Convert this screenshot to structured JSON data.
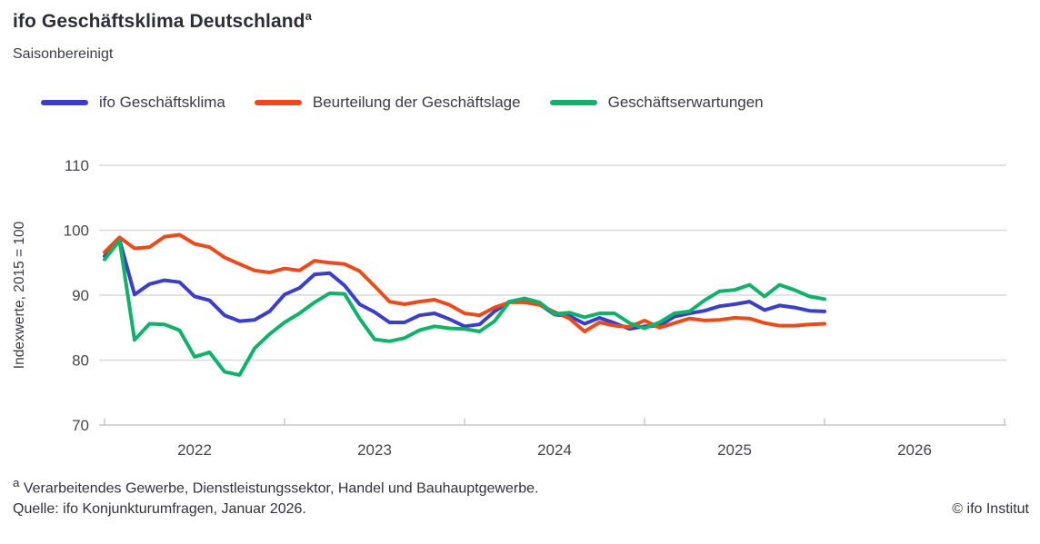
{
  "header": {
    "title": "ifo Geschäftsklima Deutschland",
    "title_superscript": "a",
    "subtitle": "Saisonbereinigt"
  },
  "legend": {
    "items": [
      {
        "label": "ifo Geschäftsklima",
        "color": "#3a3ec9"
      },
      {
        "label": "Beurteilung der Geschäftslage",
        "color": "#eb4a1a"
      },
      {
        "label": "Geschäftserwartungen",
        "color": "#10b168"
      }
    ]
  },
  "chart_data": {
    "type": "line",
    "title": "ifo Geschäftsklima Deutschland",
    "subtitle": "Saisonbereinigt",
    "ylabel": "Indexwerte, 2015 = 100",
    "ylim": [
      70,
      110
    ],
    "yticks": [
      70,
      80,
      90,
      100,
      110
    ],
    "gridlines": [
      80,
      90,
      100,
      110
    ],
    "grid": "horizontal-only",
    "legend_position": "top",
    "x_frequency": "monthly",
    "x_start": "2022-01",
    "x_end": "2026-01",
    "xticks": [
      "2022",
      "2023",
      "2024",
      "2025",
      "2026"
    ],
    "series": [
      {
        "name": "ifo Geschäftsklima",
        "color": "#3a3ec9",
        "values": [
          96.0,
          98.5,
          90.1,
          91.7,
          92.3,
          92.0,
          89.8,
          89.2,
          86.9,
          86.0,
          86.2,
          87.5,
          90.1,
          91.1,
          93.2,
          93.4,
          91.5,
          88.6,
          87.4,
          85.8,
          85.8,
          86.9,
          87.2,
          86.3,
          85.2,
          85.5,
          87.5,
          89.0,
          89.2,
          88.6,
          87.0,
          86.8,
          85.6,
          86.5,
          85.7,
          84.8,
          85.2,
          85.3,
          86.7,
          87.2,
          87.6,
          88.3,
          88.6,
          89.0,
          87.7,
          88.4,
          88.1,
          87.6,
          87.5
        ]
      },
      {
        "name": "Beurteilung der Geschäftslage",
        "color": "#eb4a1a",
        "values": [
          96.6,
          98.9,
          97.2,
          97.4,
          99.0,
          99.3,
          97.9,
          97.4,
          95.8,
          94.8,
          93.8,
          93.5,
          94.1,
          93.8,
          95.3,
          95.0,
          94.8,
          93.7,
          91.4,
          89.0,
          88.6,
          89.0,
          89.3,
          88.5,
          87.2,
          86.9,
          88.1,
          88.9,
          88.9,
          88.5,
          87.4,
          86.4,
          84.4,
          85.8,
          85.3,
          85.1,
          86.1,
          85.0,
          85.7,
          86.4,
          86.1,
          86.2,
          86.5,
          86.4,
          85.7,
          85.3,
          85.3,
          85.5,
          85.6
        ]
      },
      {
        "name": "Geschäftserwartungen",
        "color": "#10b168",
        "values": [
          95.5,
          98.4,
          83.1,
          85.6,
          85.5,
          84.6,
          80.5,
          81.2,
          78.2,
          77.7,
          81.8,
          84.0,
          85.8,
          87.2,
          88.9,
          90.3,
          90.2,
          86.4,
          83.2,
          82.9,
          83.4,
          84.6,
          85.2,
          84.9,
          84.8,
          84.4,
          86.0,
          89.0,
          89.5,
          88.9,
          87.1,
          87.3,
          86.6,
          87.2,
          87.2,
          85.7,
          84.9,
          85.8,
          87.2,
          87.5,
          89.2,
          90.6,
          90.8,
          91.6,
          89.8,
          91.6,
          90.8,
          89.8,
          89.4
        ]
      }
    ]
  },
  "footnote": {
    "marker": "a",
    "text": " Verarbeitendes Gewerbe, Dienstleistungssektor, Handel und Bauhauptgewerbe."
  },
  "source": {
    "text": "Quelle: ifo Konjunkturumfragen, Januar 2026."
  },
  "credit": {
    "text": "© ifo Institut"
  }
}
